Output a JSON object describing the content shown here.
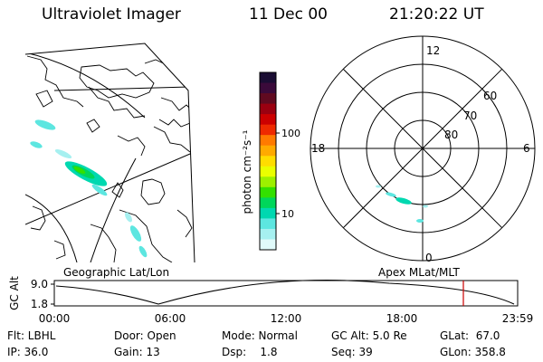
{
  "header": {
    "title": "Ultraviolet Imager",
    "date": "11 Dec 00",
    "time": "21:20:22 UT"
  },
  "colorbar": {
    "unit_label": "photon cm⁻²s⁻¹",
    "ticks": [
      "100",
      "10"
    ],
    "colors": [
      "#1a0d33",
      "#3a0a3a",
      "#600a20",
      "#9a0010",
      "#cc0000",
      "#ee2a00",
      "#ff7a00",
      "#ffaa00",
      "#ffdd00",
      "#eaff00",
      "#9cf000",
      "#33e000",
      "#00d65a",
      "#00d8b0",
      "#5de6e0",
      "#a6f0f0",
      "#e0fafa"
    ]
  },
  "polar_plot": {
    "mlt_labels": [
      "12",
      "18",
      "6",
      "0"
    ],
    "lat_labels": [
      "60",
      "70",
      "80"
    ]
  },
  "timeline": {
    "axis_title": "GC Alt",
    "yticks": [
      "9.0",
      "1.8"
    ],
    "left_title": "Geographic Lat/Lon",
    "right_title": "Apex MLat/MLT",
    "xticks": [
      "00:00",
      "06:00",
      "12:00",
      "18:00",
      "23:59"
    ],
    "marker_color": "#cc0000"
  },
  "info": {
    "flt": "Flt: LBHL",
    "ip": "IP: 36.0",
    "door": "Door: Open",
    "gain": "Gain: 13",
    "mode": "Mode: Normal",
    "dsp": "Dsp:    1.8",
    "gcalt": "GC Alt: 5.0 Re",
    "seq": "Seq: 39",
    "glat": "GLat:  67.0",
    "glon": "GLon: 358.8"
  }
}
